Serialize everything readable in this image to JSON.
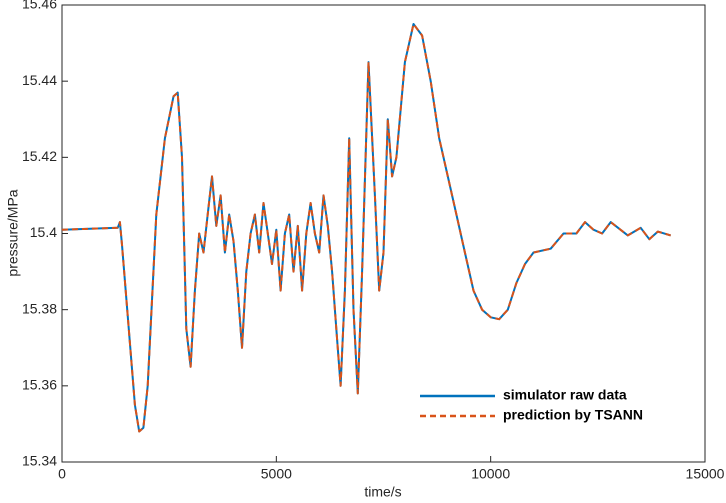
{
  "chart_data": {
    "type": "line",
    "x_label": "time/s",
    "y_label": "pressure/MPa",
    "x": [
      0,
      1300,
      1350,
      1400,
      1700,
      1800,
      1900,
      2000,
      2200,
      2400,
      2600,
      2700,
      2800,
      2900,
      3000,
      3100,
      3200,
      3300,
      3400,
      3500,
      3600,
      3700,
      3800,
      3900,
      4000,
      4100,
      4200,
      4300,
      4400,
      4500,
      4600,
      4700,
      4800,
      4900,
      5000,
      5100,
      5200,
      5300,
      5400,
      5500,
      5600,
      5700,
      5800,
      5900,
      6000,
      6100,
      6200,
      6300,
      6400,
      6500,
      6600,
      6700,
      6800,
      6900,
      7000,
      7150,
      7300,
      7400,
      7500,
      7600,
      7700,
      7800,
      8000,
      8200,
      8400,
      8600,
      8800,
      9000,
      9200,
      9400,
      9600,
      9800,
      10000,
      10200,
      10400,
      10600,
      10800,
      11000,
      11400,
      11700,
      12000,
      12200,
      12400,
      12600,
      12800,
      13200,
      13500,
      13700,
      13900,
      14200
    ],
    "series": [
      {
        "name": "simulator raw data",
        "color": "#0072bd",
        "dash": false,
        "values": [
          15.401,
          15.4015,
          15.403,
          15.397,
          15.355,
          15.348,
          15.349,
          15.36,
          15.405,
          15.425,
          15.436,
          15.437,
          15.42,
          15.375,
          15.365,
          15.385,
          15.4,
          15.395,
          15.405,
          15.415,
          15.402,
          15.41,
          15.395,
          15.405,
          15.398,
          15.385,
          15.37,
          15.39,
          15.4,
          15.405,
          15.395,
          15.408,
          15.4,
          15.392,
          15.401,
          15.385,
          15.4,
          15.405,
          15.39,
          15.402,
          15.385,
          15.4,
          15.408,
          15.4,
          15.395,
          15.41,
          15.402,
          15.39,
          15.375,
          15.36,
          15.385,
          15.425,
          15.38,
          15.358,
          15.39,
          15.445,
          15.41,
          15.385,
          15.395,
          15.43,
          15.415,
          15.42,
          15.445,
          15.455,
          15.452,
          15.44,
          15.425,
          15.415,
          15.405,
          15.395,
          15.385,
          15.38,
          15.378,
          15.3775,
          15.38,
          15.387,
          15.392,
          15.395,
          15.396,
          15.4,
          15.4,
          15.403,
          15.401,
          15.4,
          15.403,
          15.3995,
          15.4015,
          15.3985,
          15.4005,
          15.3995
        ]
      },
      {
        "name": "prediction by TSANN",
        "color": "#d95319",
        "dash": true,
        "values": [
          15.401,
          15.4015,
          15.403,
          15.397,
          15.355,
          15.348,
          15.349,
          15.36,
          15.405,
          15.425,
          15.436,
          15.437,
          15.42,
          15.375,
          15.365,
          15.385,
          15.4,
          15.395,
          15.405,
          15.415,
          15.402,
          15.41,
          15.395,
          15.405,
          15.398,
          15.385,
          15.37,
          15.39,
          15.4,
          15.405,
          15.395,
          15.408,
          15.4,
          15.392,
          15.401,
          15.385,
          15.4,
          15.405,
          15.39,
          15.402,
          15.385,
          15.4,
          15.408,
          15.4,
          15.395,
          15.41,
          15.402,
          15.39,
          15.375,
          15.36,
          15.385,
          15.425,
          15.38,
          15.358,
          15.39,
          15.445,
          15.41,
          15.385,
          15.395,
          15.43,
          15.415,
          15.42,
          15.445,
          15.455,
          15.452,
          15.44,
          15.425,
          15.415,
          15.405,
          15.395,
          15.385,
          15.38,
          15.378,
          15.3775,
          15.38,
          15.387,
          15.392,
          15.395,
          15.396,
          15.4,
          15.4,
          15.403,
          15.401,
          15.4,
          15.403,
          15.3995,
          15.4015,
          15.3985,
          15.4005,
          15.3995
        ]
      }
    ],
    "xlim": [
      0,
      15000
    ],
    "xticks": [
      0,
      5000,
      10000,
      15000
    ],
    "ylim": [
      15.34,
      15.46
    ],
    "yticks": [
      15.34,
      15.36,
      15.38,
      15.4,
      15.42,
      15.44,
      15.46
    ],
    "legend": "lower right",
    "grid": false
  }
}
